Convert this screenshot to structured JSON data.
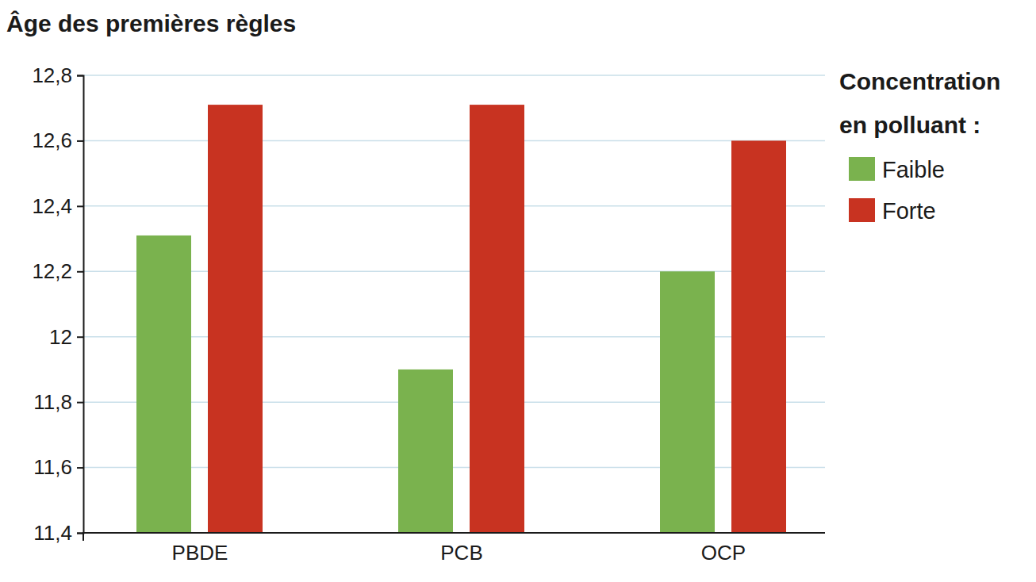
{
  "chart_data": {
    "type": "bar",
    "title": "Âge des premières règles",
    "legend_title": [
      "Concentration",
      "en polluant :"
    ],
    "categories": [
      "PBDE",
      "PCB",
      "OCP"
    ],
    "series": [
      {
        "name": "Faible",
        "color": "#7ab24e",
        "values": [
          12.31,
          11.9,
          12.2
        ]
      },
      {
        "name": "Forte",
        "color": "#c83321",
        "values": [
          12.71,
          12.71,
          12.6
        ]
      }
    ],
    "ylim": [
      11.4,
      12.8
    ],
    "yticks": [
      {
        "value": 11.4,
        "label": "11,4"
      },
      {
        "value": 11.6,
        "label": "11,6"
      },
      {
        "value": 11.8,
        "label": "11,8"
      },
      12,
      {
        "value": 12.2,
        "label": "12,2"
      },
      {
        "value": 12.4,
        "label": "12,4"
      },
      {
        "value": 12.6,
        "label": "12,6"
      },
      {
        "value": 12.8,
        "label": "12,8"
      }
    ],
    "grid": true,
    "legend": "top-right"
  }
}
